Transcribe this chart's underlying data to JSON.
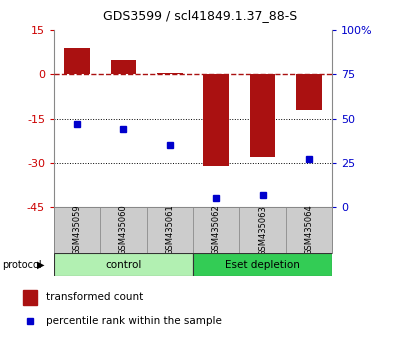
{
  "title": "GDS3599 / scl41849.1.37_88-S",
  "samples": [
    "GSM435059",
    "GSM435060",
    "GSM435061",
    "GSM435062",
    "GSM435063",
    "GSM435064"
  ],
  "transformed_count": [
    9.0,
    5.0,
    0.5,
    -31.0,
    -28.0,
    -12.0
  ],
  "percentile_rank": [
    47,
    44,
    35,
    5,
    7,
    27
  ],
  "bar_color": "#aa1111",
  "dot_color": "#0000cc",
  "left_ylim": [
    -45,
    15
  ],
  "left_yticks": [
    -45,
    -30,
    -15,
    0,
    15
  ],
  "right_ylim": [
    0,
    100
  ],
  "right_yticks": [
    0,
    25,
    50,
    75,
    100
  ],
  "dotted_lines": [
    -15,
    -30
  ],
  "groups": [
    {
      "label": "control",
      "start": 0,
      "end": 3,
      "color": "#b2f0b2"
    },
    {
      "label": "Eset depletion",
      "start": 3,
      "end": 6,
      "color": "#33cc55"
    }
  ],
  "protocol_label": "protocol",
  "legend_bar_label": "transformed count",
  "legend_dot_label": "percentile rank within the sample",
  "background_color": "#ffffff",
  "tick_label_color_left": "#cc0000",
  "tick_label_color_right": "#0000cc",
  "bar_width": 0.55,
  "sample_strip_color": "#cccccc",
  "sample_strip_border": "#888888"
}
